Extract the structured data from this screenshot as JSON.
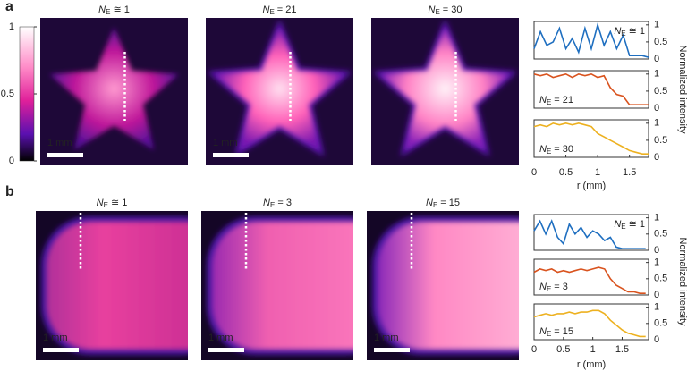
{
  "colorbar": {
    "ylim": [
      0,
      1
    ],
    "yticks": [
      1,
      0.5,
      0
    ]
  },
  "panels": [
    {
      "label": "a",
      "images": [
        {
          "title": {
            "symbol": "N",
            "subscript": "E",
            "relation": "≅ 1"
          },
          "scale_bar": "1 mm"
        },
        {
          "title": {
            "symbol": "N",
            "subscript": "E",
            "relation": "= 21"
          },
          "scale_bar": "1 mm"
        },
        {
          "title": {
            "symbol": "N",
            "subscript": "E",
            "relation": "= 30"
          }
        }
      ]
    },
    {
      "label": "b",
      "images": [
        {
          "title": {
            "symbol": "N",
            "subscript": "E",
            "relation": "≅ 1"
          },
          "scale_bar": "1 mm"
        },
        {
          "title": {
            "symbol": "N",
            "subscript": "E",
            "relation": "= 3"
          },
          "scale_bar": "1 mm"
        },
        {
          "title": {
            "symbol": "N",
            "subscript": "E",
            "relation": "= 15"
          },
          "scale_bar": "1 mm"
        }
      ]
    }
  ],
  "chart_data": [
    {
      "type": "line",
      "xlabel": "r (mm)",
      "ylabel": "Normalized intensity",
      "x": [
        0,
        0.1,
        0.2,
        0.3,
        0.4,
        0.5,
        0.6,
        0.7,
        0.8,
        0.9,
        1,
        1.1,
        1.2,
        1.3,
        1.4,
        1.5,
        1.6,
        1.7,
        1.8
      ],
      "xlim": [
        0,
        1.8
      ],
      "xticks": [
        0,
        0.5,
        1,
        1.5
      ],
      "ylim": [
        0,
        1.1
      ],
      "yticks": [
        0,
        0.5,
        1
      ],
      "series": [
        {
          "name": {
            "symbol": "N",
            "subscript": "E",
            "relation": "≅ 1"
          },
          "color": "#1f6fc0",
          "values": [
            0.3,
            0.8,
            0.4,
            0.5,
            0.9,
            0.3,
            0.6,
            0.2,
            0.9,
            0.3,
            1.0,
            0.4,
            0.8,
            0.3,
            0.7,
            0.1,
            0.1,
            0.1,
            0.05
          ]
        },
        {
          "name": {
            "symbol": "N",
            "subscript": "E",
            "relation": "= 21"
          },
          "color": "#d9531e",
          "values": [
            1.0,
            0.95,
            1.0,
            0.9,
            0.95,
            1.0,
            0.9,
            1.0,
            0.95,
            1.0,
            0.9,
            0.95,
            0.6,
            0.4,
            0.35,
            0.1,
            0.1,
            0.1,
            0.1
          ]
        },
        {
          "name": {
            "symbol": "N",
            "subscript": "E",
            "relation": "= 30"
          },
          "color": "#edb120",
          "values": [
            0.9,
            0.95,
            0.9,
            1.0,
            0.95,
            1.0,
            0.95,
            1.0,
            0.95,
            0.9,
            0.7,
            0.6,
            0.5,
            0.4,
            0.3,
            0.2,
            0.15,
            0.1,
            0.1
          ]
        }
      ]
    },
    {
      "type": "line",
      "xlabel": "r (mm)",
      "ylabel": "Normalized intensity",
      "x": [
        0,
        0.1,
        0.2,
        0.3,
        0.4,
        0.5,
        0.6,
        0.7,
        0.8,
        0.9,
        1,
        1.1,
        1.2,
        1.3,
        1.4,
        1.5,
        1.6,
        1.7,
        1.8,
        1.9
      ],
      "xlim": [
        0,
        1.95
      ],
      "xticks": [
        0,
        0.5,
        1,
        1.5
      ],
      "ylim": [
        0,
        1.1
      ],
      "yticks": [
        0,
        0.5,
        1
      ],
      "series": [
        {
          "name": {
            "symbol": "N",
            "subscript": "E",
            "relation": "≅ 1"
          },
          "color": "#1f6fc0",
          "values": [
            0.6,
            0.9,
            0.5,
            0.9,
            0.4,
            0.2,
            0.8,
            0.5,
            0.7,
            0.4,
            0.6,
            0.5,
            0.3,
            0.4,
            0.1,
            0.05,
            0.05,
            0.05,
            0.05,
            0.05
          ]
        },
        {
          "name": {
            "symbol": "N",
            "subscript": "E",
            "relation": "= 3"
          },
          "color": "#d9531e",
          "values": [
            0.7,
            0.8,
            0.75,
            0.8,
            0.7,
            0.75,
            0.7,
            0.75,
            0.8,
            0.75,
            0.8,
            0.85,
            0.8,
            0.5,
            0.3,
            0.2,
            0.1,
            0.1,
            0.05,
            0.05
          ]
        },
        {
          "name": {
            "symbol": "N",
            "subscript": "E",
            "relation": "= 15"
          },
          "color": "#edb120",
          "values": [
            0.7,
            0.75,
            0.8,
            0.75,
            0.8,
            0.8,
            0.85,
            0.8,
            0.85,
            0.85,
            0.9,
            0.9,
            0.8,
            0.6,
            0.45,
            0.3,
            0.2,
            0.15,
            0.1,
            0.1
          ]
        }
      ]
    }
  ]
}
